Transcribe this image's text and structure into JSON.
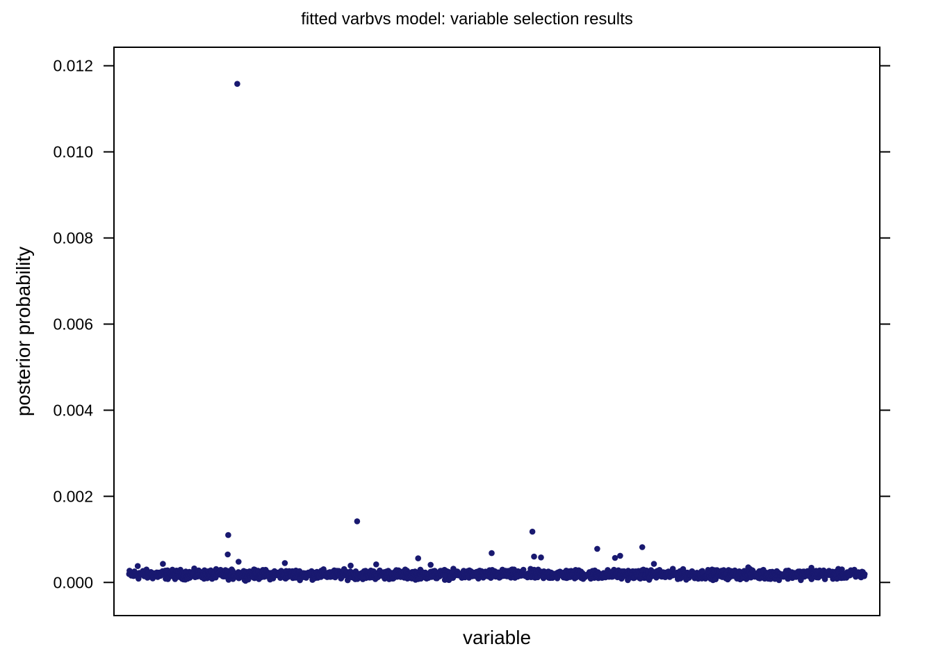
{
  "chart_data": {
    "type": "scatter",
    "title": "fitted varbvs model: variable selection results",
    "xlabel": "variable",
    "ylabel": "posterior probability",
    "ylim": [
      -0.00077,
      0.01243
    ],
    "xlim": [
      -35,
      1735
    ],
    "y_ticks": [
      {
        "value": 0.0,
        "label": "0.000"
      },
      {
        "value": 0.002,
        "label": "0.002"
      },
      {
        "value": 0.004,
        "label": "0.004"
      },
      {
        "value": 0.006,
        "label": "0.006"
      },
      {
        "value": 0.008,
        "label": "0.008"
      },
      {
        "value": 0.01,
        "label": "0.010"
      },
      {
        "value": 0.012,
        "label": "0.012"
      }
    ],
    "x_ticks_shown": false,
    "grid": false,
    "point_color": "#191970",
    "series": [
      {
        "name": "",
        "points": [
          {
            "x": 250,
            "y": 0.01158
          },
          {
            "x": 527,
            "y": 0.00142
          },
          {
            "x": 932,
            "y": 0.00118
          },
          {
            "x": 229,
            "y": 0.0011
          },
          {
            "x": 1186,
            "y": 0.00082
          },
          {
            "x": 1082,
            "y": 0.00078
          },
          {
            "x": 838,
            "y": 0.00068
          },
          {
            "x": 228,
            "y": 0.00065
          },
          {
            "x": 1135,
            "y": 0.00062
          },
          {
            "x": 936,
            "y": 0.0006
          },
          {
            "x": 952,
            "y": 0.00058
          },
          {
            "x": 1123,
            "y": 0.00057
          },
          {
            "x": 668,
            "y": 0.00056
          },
          {
            "x": 253,
            "y": 0.00048
          },
          {
            "x": 360,
            "y": 0.00045
          },
          {
            "x": 1213,
            "y": 0.00043
          },
          {
            "x": 78,
            "y": 0.00043
          },
          {
            "x": 20,
            "y": 0.00038
          },
          {
            "x": 571,
            "y": 0.00042
          },
          {
            "x": 697,
            "y": 0.00041
          },
          {
            "x": 512,
            "y": 0.00039
          },
          {
            "x": 1431,
            "y": 0.00035
          },
          {
            "x": 1577,
            "y": 0.00034
          }
        ],
        "bulk": {
          "count": 1650,
          "x_range": [
            0,
            1700
          ],
          "y_range": [
            3e-05,
            0.00034
          ],
          "typical_y": 0.00018
        }
      }
    ]
  }
}
